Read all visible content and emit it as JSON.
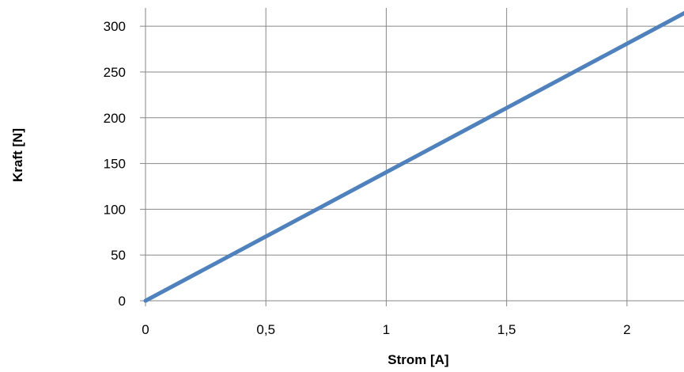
{
  "chart_data": {
    "type": "line",
    "title": "",
    "xlabel": "Strom [A]",
    "ylabel": "Kraft [N]",
    "xlim": [
      0,
      2.25
    ],
    "ylim": [
      0,
      320
    ],
    "x_ticks": [
      0,
      0.5,
      1,
      1.5,
      2
    ],
    "x_tick_labels": [
      "0",
      "0,5",
      "1",
      "1,5",
      "2"
    ],
    "y_ticks": [
      0,
      50,
      100,
      150,
      200,
      250,
      300
    ],
    "y_tick_labels": [
      "0",
      "50",
      "100",
      "150",
      "200",
      "250",
      "300"
    ],
    "grid": true,
    "legend": "none",
    "series": [
      {
        "color": "#4f81bd",
        "x": [
          0,
          2.25
        ],
        "y": [
          0,
          316
        ]
      }
    ]
  }
}
